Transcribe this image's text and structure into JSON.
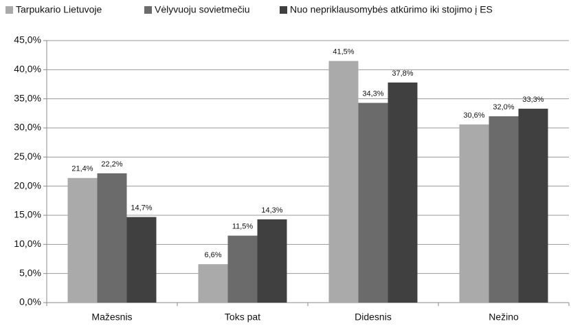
{
  "chart_data": {
    "type": "bar",
    "categories": [
      "Mažesnis",
      "Toks pat",
      "Didesnis",
      "Nežino"
    ],
    "series": [
      {
        "name": "Tarpukario Lietuvoje",
        "color": "#aaaaaa",
        "values": [
          21.4,
          6.6,
          41.5,
          30.6
        ],
        "value_labels": [
          "21,4%",
          "6,6%",
          "41,5%",
          "30,6%"
        ]
      },
      {
        "name": "Vėlyvuoju sovietmečiu",
        "color": "#6b6b6b",
        "values": [
          22.2,
          11.5,
          34.3,
          32.0
        ],
        "value_labels": [
          "22,2%",
          "11,5%",
          "34,3%",
          "32,0%"
        ]
      },
      {
        "name": "Nuo nepriklausomybės atkūrimo iki stojimo į ES",
        "color": "#404040",
        "values": [
          14.7,
          14.3,
          37.8,
          33.3
        ],
        "value_labels": [
          "14,7%",
          "14,3%",
          "37,8%",
          "33,3%"
        ]
      }
    ],
    "ylim": [
      0,
      45
    ],
    "yticks": [
      {
        "value": 0,
        "label": "0,0%"
      },
      {
        "value": 5,
        "label": "5,0%"
      },
      {
        "value": 10,
        "label": "10,0%"
      },
      {
        "value": 15,
        "label": "15,0%"
      },
      {
        "value": 20,
        "label": "20,0%"
      },
      {
        "value": 25,
        "label": "25,0%"
      },
      {
        "value": 30,
        "label": "30,0%"
      },
      {
        "value": 35,
        "label": "35,0%"
      },
      {
        "value": 40,
        "label": "40,0%"
      },
      {
        "value": 45,
        "label": "45,0%"
      }
    ],
    "grid": true,
    "legend": "top"
  }
}
